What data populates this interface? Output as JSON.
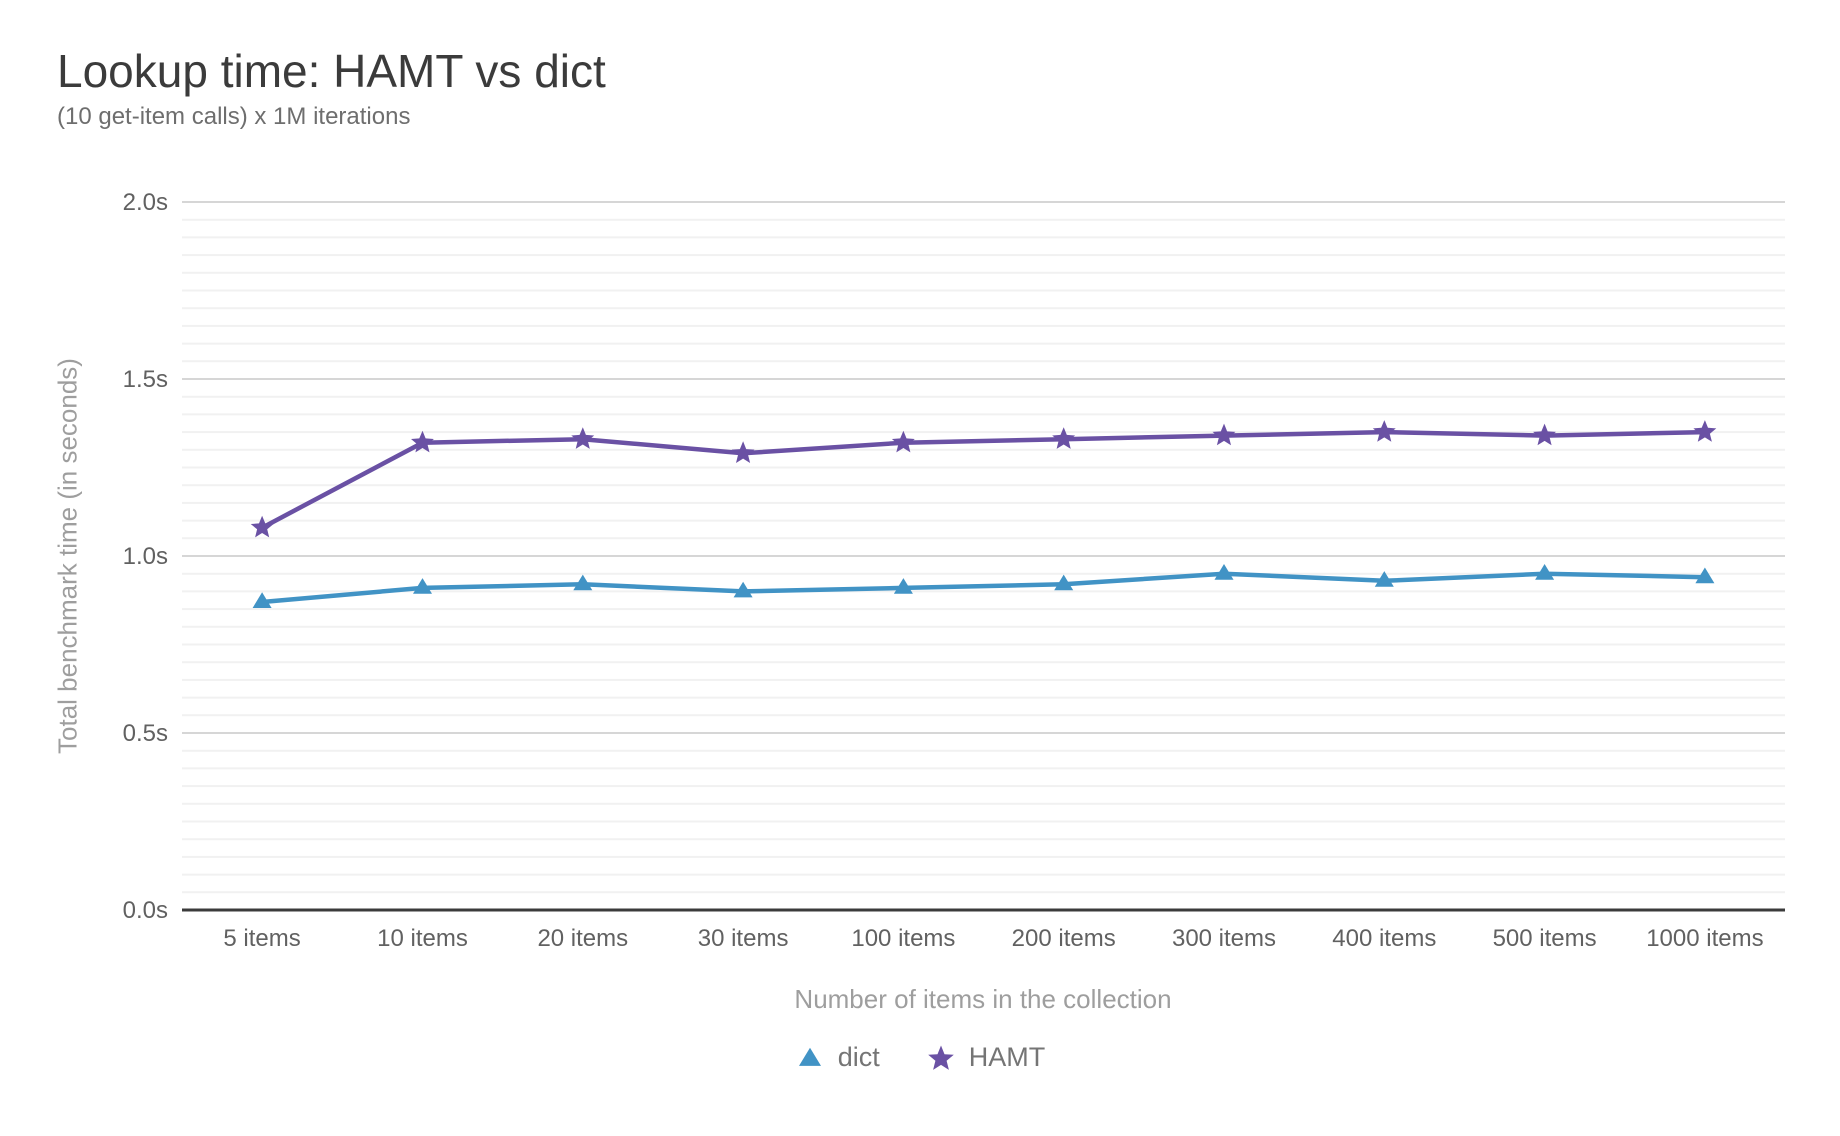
{
  "chart_data": {
    "type": "line",
    "title": "Lookup time: HAMT vs dict",
    "subtitle": "(10 get-item calls) x 1M iterations",
    "xlabel": "Number of items in the collection",
    "ylabel": "Total benchmark time (in seconds)",
    "categories": [
      "5 items",
      "10 items",
      "20 items",
      "30 items",
      "100 items",
      "200 items",
      "300 items",
      "400 items",
      "500 items",
      "1000 items"
    ],
    "series": [
      {
        "name": "dict",
        "marker": "triangle",
        "color": "#4193c5",
        "values": [
          0.87,
          0.91,
          0.92,
          0.9,
          0.91,
          0.92,
          0.95,
          0.93,
          0.95,
          0.94
        ]
      },
      {
        "name": "HAMT",
        "marker": "star",
        "color": "#6a51a4",
        "values": [
          1.08,
          1.32,
          1.33,
          1.29,
          1.32,
          1.33,
          1.34,
          1.35,
          1.34,
          1.35
        ]
      }
    ],
    "ylim": [
      0,
      2
    ],
    "yticks": [
      {
        "value": 0,
        "label": "0.0s"
      },
      {
        "value": 0.5,
        "label": "0.5s"
      },
      {
        "value": 1,
        "label": "1.0s"
      },
      {
        "value": 1.5,
        "label": "1.5s"
      },
      {
        "value": 2,
        "label": "2.0s"
      }
    ],
    "minor_gridline_step": 0.05,
    "grid": true,
    "legend_position": "bottom",
    "colors": {
      "background": "#ffffff",
      "title": "#3b3b3b",
      "subtitle": "#6e6e6e",
      "major_gridline": "#d6d6d6",
      "minor_gridline": "#f1f1f1",
      "axis_line": "#3b3b3b",
      "tick_label": "#616161",
      "axis_title": "#9e9e9e",
      "legend_label": "#757575"
    }
  }
}
